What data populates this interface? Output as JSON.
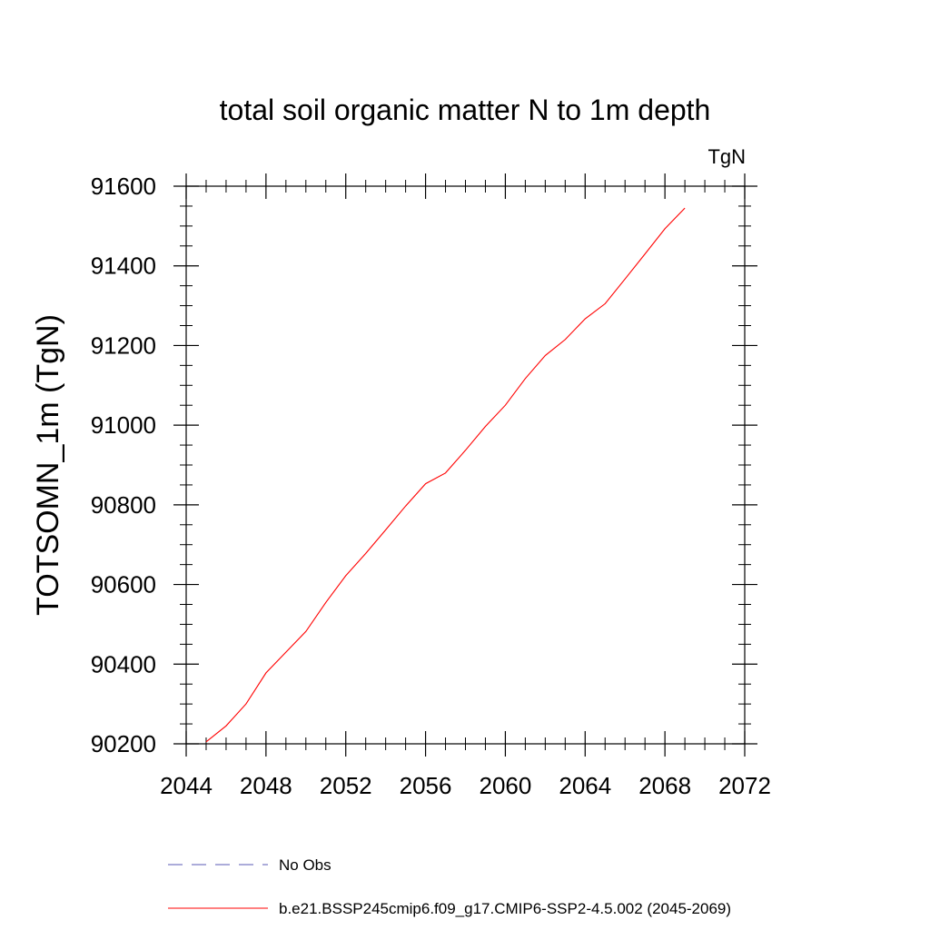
{
  "chart_data": {
    "type": "line",
    "title": "total soil organic matter N to 1m depth",
    "units_label": "TgN",
    "xlabel": "",
    "ylabel": "TOTSOMN_1m  (TgN)",
    "xlim": [
      2044,
      2072
    ],
    "ylim": [
      90200,
      91600
    ],
    "x_ticks": [
      2044,
      2048,
      2052,
      2056,
      2060,
      2064,
      2068,
      2072
    ],
    "y_ticks": [
      90200,
      90400,
      90600,
      90800,
      91000,
      91200,
      91400,
      91600
    ],
    "x_minor_step": 1,
    "y_minor_step": 50,
    "grid": false,
    "legend_position": "bottom",
    "series": [
      {
        "name": "No Obs",
        "style": "dashed",
        "color": "#5a5ab4",
        "x": [],
        "y": []
      },
      {
        "name": "b.e21.BSSP245cmip6.f09_g17.CMIP6-SSP2-4.5.002 (2045-2069)",
        "style": "solid",
        "color": "#ff0000",
        "x": [
          2045,
          2046,
          2047,
          2048,
          2049,
          2050,
          2051,
          2052,
          2053,
          2054,
          2055,
          2056,
          2057,
          2058,
          2059,
          2060,
          2061,
          2062,
          2063,
          2064,
          2065,
          2066,
          2067,
          2068,
          2069
        ],
        "y": [
          90205,
          90245,
          90300,
          90378,
          90430,
          90482,
          90555,
          90622,
          90678,
          90737,
          90797,
          90853,
          90880,
          90937,
          90997,
          91050,
          91117,
          91175,
          91215,
          91267,
          91305,
          91367,
          91430,
          91493,
          91545
        ]
      }
    ]
  }
}
